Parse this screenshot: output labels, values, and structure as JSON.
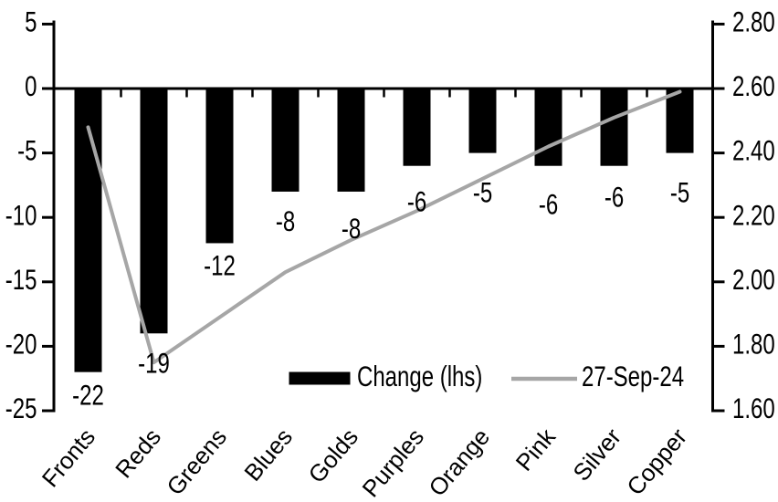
{
  "chart_data": {
    "type": "combo_bar_line",
    "title": "",
    "categories": [
      "Fronts",
      "Reds",
      "Greens",
      "Blues",
      "Golds",
      "Purples",
      "Orange",
      "Pink",
      "Silver",
      "Copper"
    ],
    "series": [
      {
        "name": "Change (lhs)",
        "type": "bar",
        "axis": "left",
        "color": "#000000",
        "values": [
          -22,
          -19,
          -12,
          -8,
          -8,
          -6,
          -5,
          -6,
          -6,
          -5
        ],
        "data_labels": [
          "-22",
          "-19",
          "-12",
          "-8",
          "-8",
          "-6",
          "-5",
          "-6",
          "-6",
          "-5"
        ]
      },
      {
        "name": "27-Sep-24",
        "type": "line",
        "axis": "right",
        "color": "#a6a6a6",
        "values": [
          2.48,
          1.75,
          1.89,
          2.03,
          2.13,
          2.22,
          2.32,
          2.42,
          2.51,
          2.59
        ]
      }
    ],
    "left_axis": {
      "min": -25,
      "max": 5,
      "tick_labels": [
        "5",
        "0",
        "-5",
        "-10",
        "-15",
        "-20",
        "-25"
      ]
    },
    "right_axis": {
      "min": 1.6,
      "max": 2.8,
      "tick_labels": [
        "2.80",
        "2.60",
        "2.40",
        "2.20",
        "2.00",
        "1.80",
        "1.60"
      ]
    },
    "legend": {
      "position": "bottom-center-inside",
      "entries": [
        "Change (lhs)",
        "27-Sep-24"
      ]
    },
    "grid": false,
    "colors": {
      "bar": "#000000",
      "line": "#a6a6a6",
      "axis": "#000000",
      "background": "#ffffff"
    }
  }
}
